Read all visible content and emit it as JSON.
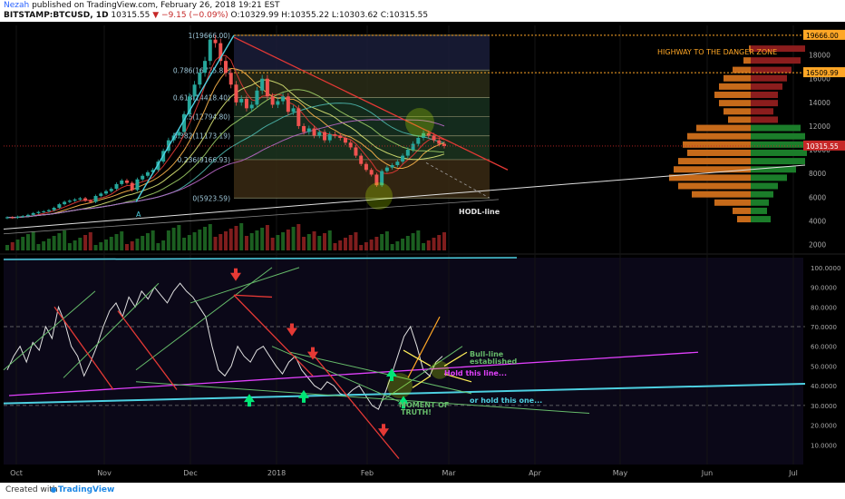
{
  "header": {
    "author": "Nezah",
    "published": " published on TradingView.com, February 26, 2018 19:21 EST",
    "symbol": "BITSTAMP:BTCUSD, 1D",
    "last": "10315.55",
    "change": "▼ −9.15 (−0.09%)",
    "ohlc_open": "O:10329.99",
    "ohlc_high": "H:10355.22",
    "ohlc_low": "L:10303.62",
    "ohlc_close": "C:10315.55"
  },
  "footer": {
    "created_with": "Created with",
    "brand": "TradingView"
  },
  "colors": {
    "background": "#000000",
    "price_up": "#26a69a",
    "price_down": "#ef5350",
    "trendline_red": "#e53935",
    "channel_green": "#66bb6a",
    "support_cyan": "#4dd0e1",
    "magenta": "#e040fb",
    "orange_label": "#ffa726",
    "hodl_white": "#e0e0e0"
  },
  "annotations": {
    "highway": "HIGHWAY TO THE DANGER ZONE",
    "hodl": "HODL-line",
    "bull_line": "Bull-line",
    "established": "established",
    "hold_this": "Hold this line...",
    "hold_that": "or hold this one...",
    "moment": "MOMENT OF",
    "truth": "TRUTH!",
    "wave_a": "A"
  },
  "chart_data": [
    {
      "type": "candlestick",
      "title": "BITSTAMP:BTCUSD, 1D",
      "x_ticks": [
        "Oct",
        "Nov",
        "Dec",
        "2018",
        "Feb",
        "Mar",
        "Apr",
        "May",
        "Jun",
        "Jul"
      ],
      "y_ticks": [
        2000,
        4000,
        6000,
        8000,
        10000,
        12000,
        14000,
        16000,
        18000
      ],
      "ylim": [
        1500,
        20500
      ],
      "last_price_label": "10315.55",
      "horizontal_levels": [
        {
          "value": 19666.0,
          "label": "19666.00"
        },
        {
          "value": 16509.99,
          "label": "16509.99"
        }
      ],
      "fibonacci": [
        {
          "ratio": "1",
          "label": "1(19666.00)",
          "value": 19666.0
        },
        {
          "ratio": "0.786",
          "label": "0.786(16725.81)",
          "value": 16725.81
        },
        {
          "ratio": "0.618",
          "label": "0.618(14418.40)",
          "value": 14418.4
        },
        {
          "ratio": "0.5",
          "label": "0.5(12794.80)",
          "value": 12794.8
        },
        {
          "ratio": "0.382",
          "label": "0.382(11173.19)",
          "value": 11173.19
        },
        {
          "ratio": "0.236",
          "label": "0.236(9166.93)",
          "value": 9166.93
        },
        {
          "ratio": "0",
          "label": "0(5923.59)",
          "value": 5923.59
        }
      ],
      "close_series": [
        4300,
        4250,
        4350,
        4400,
        4500,
        4650,
        4750,
        4800,
        4900,
        5100,
        5400,
        5600,
        5700,
        5800,
        5900,
        5700,
        5600,
        6100,
        6300,
        6500,
        6700,
        7100,
        7400,
        7200,
        6600,
        7500,
        7800,
        8100,
        8300,
        9000,
        9900,
        10800,
        11200,
        11500,
        13000,
        14500,
        15500,
        16500,
        17500,
        19300,
        19000,
        17500,
        16500,
        15500,
        14000,
        14300,
        13500,
        13800,
        15000,
        16000,
        14500,
        13800,
        14100,
        14500,
        13200,
        13500,
        12000,
        11500,
        11800,
        11200,
        11500,
        10800,
        11300,
        11200,
        11000,
        10600,
        10200,
        9500,
        8800,
        8300,
        7900,
        7000,
        8200,
        8500,
        8700,
        9000,
        9500,
        10000,
        10500,
        11000,
        11400,
        11200,
        10800,
        10500,
        10315
      ]
    },
    {
      "type": "line",
      "title": "",
      "x_ticks": [
        "Oct",
        "Nov",
        "Dec",
        "2018",
        "Feb",
        "Mar",
        "Apr",
        "May",
        "Jun",
        "Jul"
      ],
      "y_ticks": [
        10,
        20,
        30,
        40,
        50,
        60,
        70,
        80,
        90,
        100
      ],
      "y_tick_labels": [
        "10.0000",
        "20.0000",
        "30.0000",
        "40.0000",
        "50.0000",
        "60.0000",
        "70.0000",
        "80.0000",
        "90.0000",
        "100.0000"
      ],
      "ylim": [
        0,
        105
      ],
      "reference_lines": [
        30,
        70
      ],
      "series_values": [
        48,
        55,
        60,
        52,
        62,
        58,
        70,
        64,
        80,
        72,
        60,
        55,
        45,
        52,
        60,
        70,
        78,
        82,
        75,
        85,
        80,
        88,
        84,
        90,
        86,
        82,
        88,
        92,
        88,
        85,
        80,
        75,
        60,
        48,
        45,
        50,
        60,
        55,
        52,
        58,
        60,
        55,
        50,
        46,
        52,
        55,
        48,
        44,
        40,
        38,
        42,
        40,
        36,
        35,
        38,
        40,
        35,
        30,
        28,
        36,
        45,
        55,
        65,
        70,
        60,
        48,
        45,
        52,
        55
      ]
    }
  ]
}
